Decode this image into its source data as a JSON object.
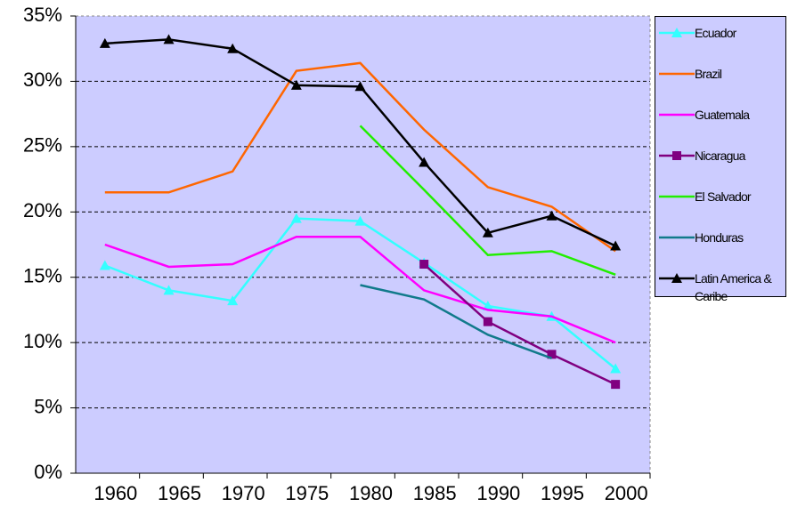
{
  "chart_data": {
    "type": "line",
    "categories": [
      "1960",
      "1965",
      "1970",
      "1975",
      "1980",
      "1985",
      "1990",
      "1995",
      "2000"
    ],
    "ylim": [
      0,
      35
    ],
    "yticks": [
      {
        "value": 0,
        "label": "0%"
      },
      {
        "value": 5,
        "label": "5%"
      },
      {
        "value": 10,
        "label": "10%"
      },
      {
        "value": 15,
        "label": "15%"
      },
      {
        "value": 20,
        "label": "20%"
      },
      {
        "value": 25,
        "label": "25%"
      },
      {
        "value": 30,
        "label": "30%"
      },
      {
        "value": 35,
        "label": "35%"
      }
    ],
    "grid": true,
    "legend": "right",
    "series": [
      {
        "name": "Ecuador",
        "color": "#33ffff",
        "marker": "triangle",
        "values": [
          15.9,
          14.0,
          13.2,
          19.5,
          19.3,
          16.1,
          12.8,
          12.0,
          8.0
        ]
      },
      {
        "name": "Brazil",
        "color": "#ff6600",
        "marker": null,
        "values": [
          21.5,
          21.5,
          23.1,
          30.8,
          31.4,
          26.3,
          21.9,
          20.4,
          17.0
        ]
      },
      {
        "name": "Guatemala",
        "color": "#ff00ff",
        "marker": null,
        "values": [
          17.5,
          15.8,
          16.0,
          18.1,
          18.1,
          14.0,
          12.5,
          12.0,
          10.0
        ]
      },
      {
        "name": "Nicaragua",
        "color": "#800080",
        "marker": "square",
        "values": [
          null,
          null,
          null,
          null,
          null,
          16.0,
          11.6,
          9.1,
          6.8
        ]
      },
      {
        "name": "El Salvador",
        "color": "#22ee00",
        "marker": null,
        "values": [
          null,
          null,
          null,
          null,
          26.6,
          21.7,
          16.7,
          17.0,
          15.2
        ]
      },
      {
        "name": "Honduras",
        "color": "#117a8b",
        "marker": null,
        "values": [
          null,
          null,
          null,
          null,
          14.4,
          13.3,
          10.6,
          8.8,
          null
        ]
      },
      {
        "name": "Latin America & Caribe",
        "color": "#000000",
        "marker": "triangle",
        "values": [
          32.9,
          33.2,
          32.5,
          29.7,
          29.6,
          23.8,
          18.4,
          19.7,
          17.4
        ]
      }
    ]
  }
}
